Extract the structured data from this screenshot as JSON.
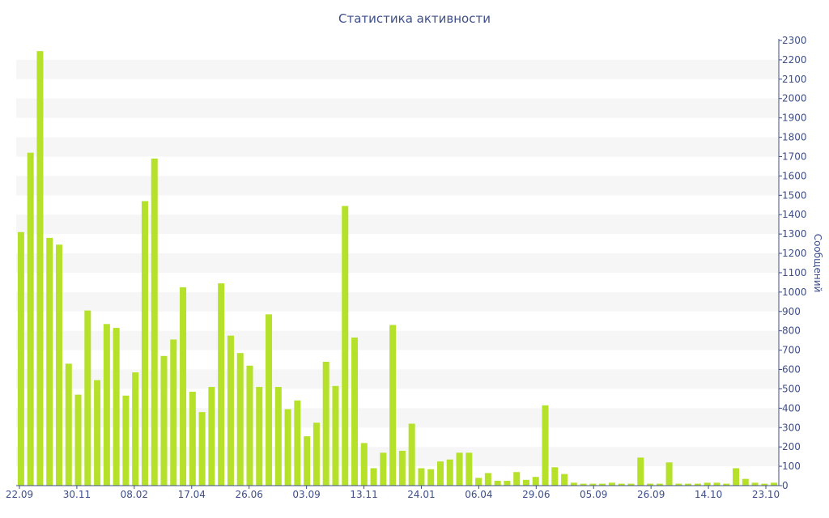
{
  "chart_data": {
    "type": "bar",
    "title": "Статистика активности",
    "xlabel": "",
    "ylabel": "Сообщений",
    "ylim": [
      0,
      2300
    ],
    "y_ticks": [
      0,
      100,
      200,
      300,
      400,
      500,
      600,
      700,
      800,
      900,
      1000,
      1100,
      1200,
      1300,
      1400,
      1500,
      1600,
      1700,
      1800,
      1900,
      2000,
      2100,
      2200,
      2300
    ],
    "y_axis_position": "right",
    "x_tick_labels": [
      "22.09",
      "30.11",
      "08.02",
      "17.04",
      "26.06",
      "03.09",
      "13.11",
      "24.01",
      "06.04",
      "29.06",
      "05.09",
      "26.09",
      "14.10",
      "23.10"
    ],
    "grid": "alternating horizontal bands",
    "bar_color": "#b5e12b",
    "band_color": "#f6f6f6",
    "text_color": "#3d4e8a",
    "values": [
      1310,
      1720,
      2245,
      1280,
      1245,
      630,
      470,
      905,
      545,
      835,
      815,
      465,
      585,
      1470,
      1690,
      670,
      755,
      1025,
      485,
      380,
      510,
      1045,
      775,
      685,
      620,
      510,
      885,
      510,
      395,
      440,
      255,
      325,
      640,
      515,
      1445,
      765,
      220,
      90,
      170,
      830,
      180,
      320,
      90,
      85,
      125,
      135,
      170,
      170,
      40,
      65,
      25,
      25,
      70,
      30,
      45,
      415,
      95,
      60,
      15,
      10,
      10,
      10,
      15,
      10,
      10,
      145,
      10,
      10,
      120,
      10,
      10,
      10,
      15,
      15,
      10,
      90,
      35,
      15,
      10,
      15
    ]
  }
}
